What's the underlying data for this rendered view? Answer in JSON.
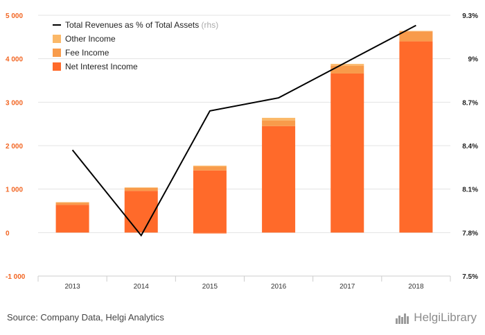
{
  "chart_data": {
    "type": "bar",
    "categories": [
      "2013",
      "2014",
      "2015",
      "2016",
      "2017",
      "2018"
    ],
    "series": [
      {
        "name": "Net Interest Income",
        "kind": "bar",
        "axis": "left",
        "color": "#ff6a2a",
        "values": [
          640,
          960,
          1430,
          2450,
          3660,
          4400
        ]
      },
      {
        "name": "Fee Income",
        "kind": "bar",
        "axis": "left",
        "color": "#f89b4b",
        "values": [
          50,
          70,
          90,
          130,
          180,
          230
        ]
      },
      {
        "name": "Other Income",
        "kind": "bar",
        "axis": "left",
        "color": "#fbb868",
        "values": [
          10,
          10,
          20,
          60,
          40,
          10
        ]
      },
      {
        "name": "Total Revenues as % of Total Assets",
        "kind": "line",
        "axis": "right",
        "color": "#000000",
        "values": [
          8.37,
          7.78,
          8.64,
          8.73,
          8.98,
          9.23
        ]
      }
    ],
    "negative_2015": -20,
    "legend_suffix": "(rhs)",
    "ylim_left": [
      -1000,
      5000
    ],
    "yticks_left": [
      5000,
      4000,
      3000,
      2000,
      1000,
      0,
      -1000
    ],
    "ytick_labels_left": [
      "5 000",
      "4 000",
      "3 000",
      "2 000",
      "1 000",
      "0",
      "-1 000"
    ],
    "ylim_right": [
      7.5,
      9.3
    ],
    "yticks_right": [
      9.3,
      9.0,
      8.7,
      8.4,
      8.1,
      7.8,
      7.5
    ],
    "ytick_labels_right": [
      "9.3%",
      "9%",
      "8.7%",
      "8.4%",
      "8.1%",
      "7.8%",
      "7.5%"
    ],
    "grid": true,
    "legend_position": "top-left"
  },
  "footer": {
    "source": "Source: Company Data, Helgi Analytics",
    "brand": "HelgiLibrary",
    "brand_icon": "helgi-bars-icon"
  }
}
